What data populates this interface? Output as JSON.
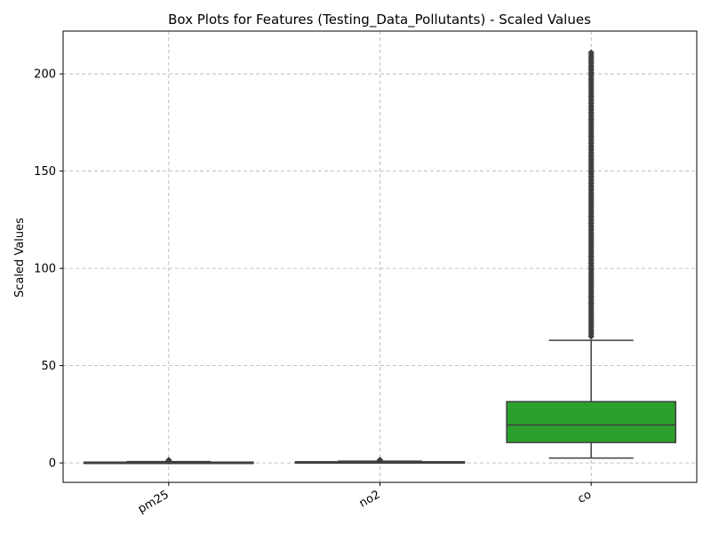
{
  "chart_data": {
    "type": "box",
    "title": "Box Plots for Features (Testing_Data_Pollutants) - Scaled Values",
    "xlabel": "",
    "ylabel": "Scaled Values",
    "ylim": [
      -10,
      222
    ],
    "yticks": [
      "0",
      "50",
      "100",
      "150",
      "200"
    ],
    "grid": true,
    "categories": [
      "pm25",
      "no2",
      "co"
    ],
    "boxes": [
      {
        "category": "pm25",
        "color": "#1f77b4",
        "whisker_low": 0.0,
        "q1": 0.1,
        "median": 0.2,
        "q3": 0.4,
        "whisker_high": 0.7,
        "outliers_range": [
          0.8,
          1.5
        ]
      },
      {
        "category": "no2",
        "color": "#ff7f0e",
        "whisker_low": 0.0,
        "q1": 0.2,
        "median": 0.4,
        "q3": 0.6,
        "whisker_high": 0.9,
        "outliers_range": [
          1.0,
          1.6
        ]
      },
      {
        "category": "co",
        "color": "#2ca02c",
        "whisker_low": 2.5,
        "q1": 10.5,
        "median": 19.5,
        "q3": 31.5,
        "whisker_high": 63.0,
        "outliers_range": [
          65.0,
          211.0
        ]
      }
    ]
  }
}
